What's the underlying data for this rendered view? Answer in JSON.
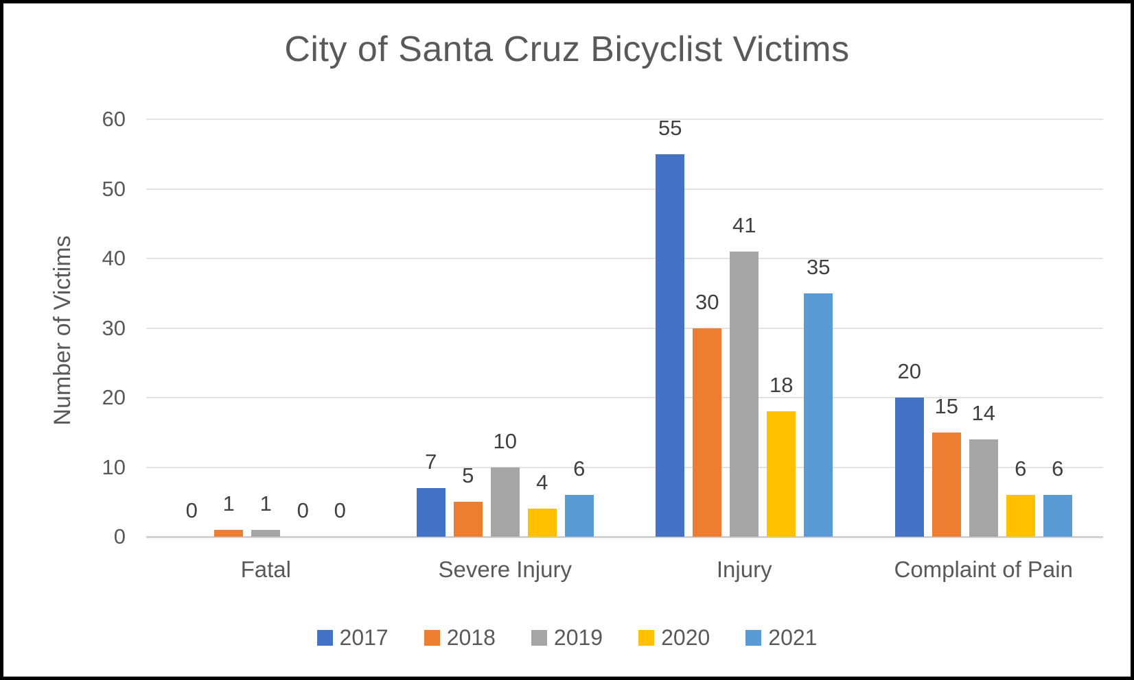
{
  "chart_data": {
    "type": "bar",
    "title": "City of Santa Cruz Bicyclist Victims",
    "ylabel": "Number of Victims",
    "xlabel": "",
    "categories": [
      "Fatal",
      "Severe Injury",
      "Injury",
      "Complaint of Pain"
    ],
    "series": [
      {
        "name": "2017",
        "color": "#4472C4",
        "values": [
          0,
          7,
          55,
          20
        ]
      },
      {
        "name": "2018",
        "color": "#ED7D31",
        "values": [
          1,
          5,
          30,
          15
        ]
      },
      {
        "name": "2019",
        "color": "#A5A5A5",
        "values": [
          1,
          10,
          41,
          14
        ]
      },
      {
        "name": "2020",
        "color": "#FFC000",
        "values": [
          0,
          4,
          18,
          6
        ]
      },
      {
        "name": "2021",
        "color": "#5B9BD5",
        "values": [
          0,
          6,
          35,
          6
        ]
      }
    ],
    "y_axis": {
      "min": 0,
      "max": 60,
      "step": 10,
      "tick_labels": [
        "0",
        "10",
        "20",
        "30",
        "40",
        "50",
        "60"
      ]
    },
    "grid": "horizontal",
    "legend_position": "bottom",
    "data_labels": "outside-end",
    "colors": {
      "title_text": "#595959",
      "axis_text": "#595959",
      "data_label_text": "#404040",
      "gridline": "#E2E2E2",
      "axis_line": "#D1D1D1",
      "frame_border": "#000000",
      "background": "#FFFFFF"
    }
  }
}
